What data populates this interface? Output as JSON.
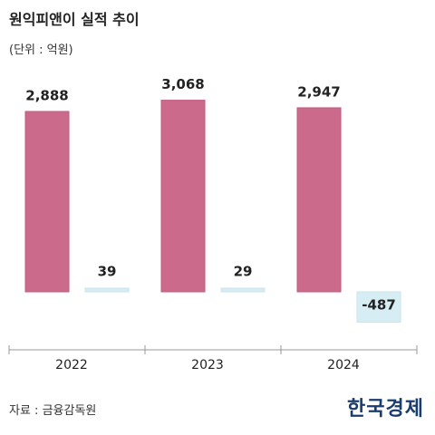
{
  "title": "원익피앤이 실적 추이",
  "unit_note": "(단위 : 억원)",
  "source": "자료 : 금융감독원",
  "logo_text": "한국경제",
  "colors": {
    "series_a": "#cb6a8b",
    "series_b": "#d6edf3",
    "axis": "#999999"
  },
  "chart_data": {
    "type": "bar",
    "categories": [
      "2022",
      "2023",
      "2024"
    ],
    "series": [
      {
        "values": [
          2888,
          3068,
          2947
        ]
      },
      {
        "values": [
          39,
          29,
          -487
        ]
      }
    ],
    "data_labels": [
      [
        "2,888",
        "3,068",
        "2,947"
      ],
      [
        "39",
        "29",
        "-487"
      ]
    ],
    "ylim": [
      -1100,
      3750
    ],
    "grid": false,
    "legend": "none"
  }
}
